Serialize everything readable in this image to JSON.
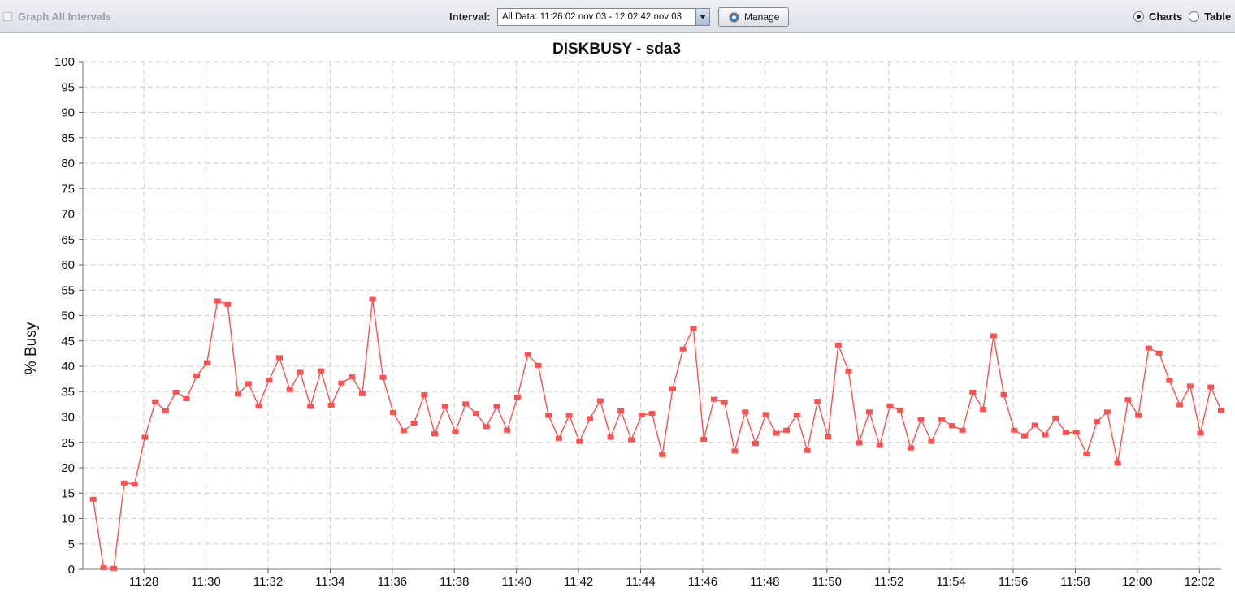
{
  "toolbar": {
    "graph_all_intervals_label": "Graph All Intervals",
    "interval_label": "Interval:",
    "interval_value": "All Data: 11:26:02 nov 03 - 12:02:42 nov 03",
    "manage_label": "Manage",
    "charts_label": "Charts",
    "table_label": "Table",
    "view_selected": "Charts"
  },
  "colors": {
    "series": "#ff5050",
    "grid": "#cfcfcf"
  },
  "chart_data": {
    "type": "line",
    "title": "DISKBUSY - sda3",
    "xlabel": "",
    "ylabel": "% Busy",
    "ylim": [
      0,
      100
    ],
    "yticks": [
      0,
      5,
      10,
      15,
      20,
      25,
      30,
      35,
      40,
      45,
      50,
      55,
      60,
      65,
      70,
      75,
      80,
      85,
      90,
      95,
      100
    ],
    "xlim": [
      "11:26:02",
      "12:02:42"
    ],
    "xticks": [
      "11:28",
      "11:30",
      "11:32",
      "11:34",
      "11:36",
      "11:38",
      "11:40",
      "11:42",
      "11:44",
      "11:46",
      "11:48",
      "11:50",
      "11:52",
      "11:54",
      "11:56",
      "11:58",
      "12:00",
      "12:02"
    ],
    "grid": true,
    "series": [
      {
        "name": "",
        "color": "#ff5050",
        "x": [
          "11:26:22",
          "11:26:42",
          "11:27:02",
          "11:27:22",
          "11:27:42",
          "11:28:02",
          "11:28:22",
          "11:28:42",
          "11:29:02",
          "11:29:22",
          "11:29:42",
          "11:30:02",
          "11:30:22",
          "11:30:42",
          "11:31:02",
          "11:31:22",
          "11:31:42",
          "11:32:02",
          "11:32:22",
          "11:32:42",
          "11:33:02",
          "11:33:22",
          "11:33:42",
          "11:34:02",
          "11:34:22",
          "11:34:42",
          "11:35:02",
          "11:35:22",
          "11:35:42",
          "11:36:02",
          "11:36:22",
          "11:36:42",
          "11:37:02",
          "11:37:22",
          "11:37:42",
          "11:38:02",
          "11:38:22",
          "11:38:42",
          "11:39:02",
          "11:39:22",
          "11:39:42",
          "11:40:02",
          "11:40:22",
          "11:40:42",
          "11:41:02",
          "11:41:22",
          "11:41:42",
          "11:42:02",
          "11:42:22",
          "11:42:42",
          "11:43:02",
          "11:43:22",
          "11:43:42",
          "11:44:02",
          "11:44:22",
          "11:44:42",
          "11:45:02",
          "11:45:22",
          "11:45:42",
          "11:46:02",
          "11:46:22",
          "11:46:42",
          "11:47:02",
          "11:47:22",
          "11:47:42",
          "11:48:02",
          "11:48:22",
          "11:48:42",
          "11:49:02",
          "11:49:22",
          "11:49:42",
          "11:50:02",
          "11:50:22",
          "11:50:42",
          "11:51:02",
          "11:51:22",
          "11:51:42",
          "11:52:02",
          "11:52:22",
          "11:52:42",
          "11:53:02",
          "11:53:22",
          "11:53:42",
          "11:54:02",
          "11:54:22",
          "11:54:42",
          "11:55:02",
          "11:55:22",
          "11:55:42",
          "11:56:02",
          "11:56:22",
          "11:56:42",
          "11:57:02",
          "11:57:22",
          "11:57:42",
          "11:58:02",
          "11:58:22",
          "11:58:42",
          "11:59:02",
          "11:59:22",
          "11:59:42",
          "12:00:02",
          "12:00:22",
          "12:00:42",
          "12:01:02",
          "12:01:22",
          "12:01:42",
          "12:02:02",
          "12:02:22",
          "12:02:42"
        ],
        "y": [
          13.8,
          0.3,
          0.2,
          17.0,
          16.8,
          26.0,
          33.0,
          31.2,
          34.9,
          33.6,
          38.1,
          40.7,
          52.9,
          52.2,
          34.5,
          36.6,
          32.2,
          37.3,
          41.7,
          35.4,
          38.8,
          32.1,
          39.1,
          32.3,
          36.7,
          37.9,
          34.6,
          53.2,
          37.8,
          30.9,
          27.3,
          28.8,
          34.4,
          26.7,
          32.1,
          27.1,
          32.6,
          30.7,
          28.1,
          32.1,
          27.4,
          33.9,
          42.3,
          40.2,
          30.3,
          25.8,
          30.3,
          25.2,
          29.7,
          33.2,
          26.0,
          31.2,
          25.5,
          30.4,
          30.7,
          22.6,
          35.6,
          43.4,
          47.5,
          25.6,
          33.5,
          32.9,
          23.3,
          31.0,
          24.8,
          30.5,
          26.8,
          27.4,
          30.4,
          23.4,
          33.1,
          26.1,
          44.2,
          39.0,
          24.9,
          31.0,
          24.4,
          32.2,
          31.3,
          23.9,
          29.5,
          25.2,
          29.5,
          28.3,
          27.4,
          34.9,
          31.5,
          46.0,
          34.4,
          27.4,
          26.3,
          28.4,
          26.5,
          29.8,
          26.9,
          27.0,
          22.7,
          29.1,
          31.0,
          20.9,
          33.4,
          30.3,
          43.6,
          42.6,
          37.2,
          32.4,
          36.1,
          26.8,
          35.9,
          31.3
        ]
      }
    ]
  }
}
